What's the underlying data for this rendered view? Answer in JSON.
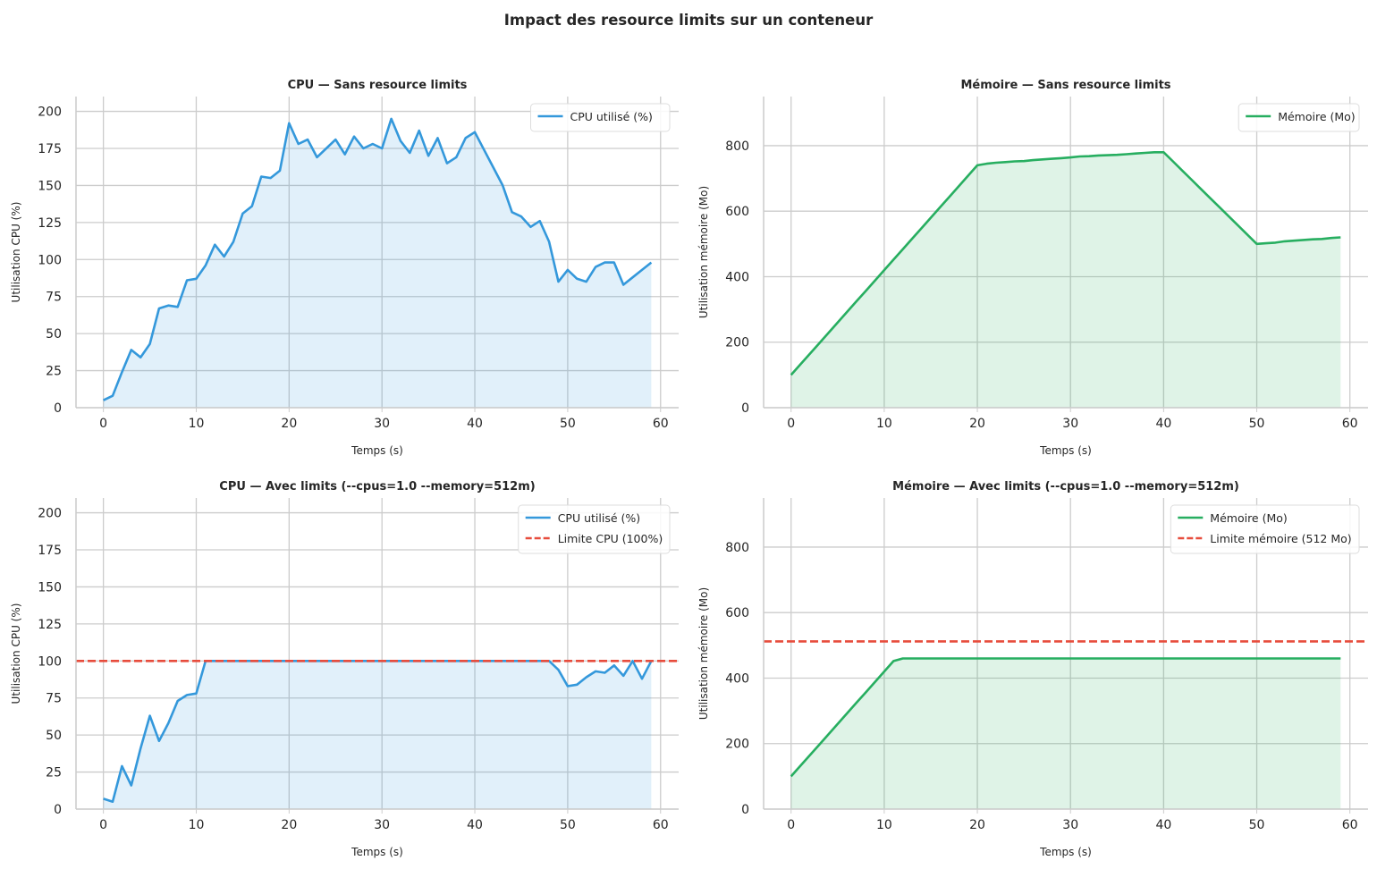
{
  "title": "Impact des resource limits sur un conteneur",
  "colors": {
    "cpu": "#3498db",
    "mem": "#27ae60",
    "limit": "#e74c3c",
    "grid": "#cccccc"
  },
  "chart_data": [
    {
      "type": "area",
      "title": "CPU — Sans resource limits",
      "xlabel": "Temps (s)",
      "ylabel": "Utilisation CPU (%)",
      "xlim": [
        -2.95,
        61.95
      ],
      "ylim": [
        0,
        210
      ],
      "xticks": [
        0,
        10,
        20,
        30,
        40,
        50,
        60
      ],
      "yticks": [
        0,
        25,
        50,
        75,
        100,
        125,
        150,
        175,
        200
      ],
      "legend_position": "top-right",
      "series": [
        {
          "name": "CPU utilisé (%)",
          "color_key": "cpu",
          "style": "solid",
          "fill": true,
          "values": [
            5,
            8,
            24,
            39,
            34,
            43,
            67,
            69,
            68,
            86,
            87,
            96,
            110,
            102,
            112,
            131,
            136,
            156,
            155,
            160,
            192,
            178,
            181,
            169,
            175,
            181,
            171,
            183,
            175,
            178,
            175,
            195,
            180,
            172,
            187,
            170,
            182,
            165,
            169,
            182,
            186,
            174,
            162,
            150,
            132,
            129,
            122,
            126,
            112,
            85,
            93,
            87,
            85,
            95,
            98,
            98,
            83,
            88,
            93,
            98
          ]
        }
      ]
    },
    {
      "type": "area",
      "title": "Mémoire — Sans resource limits",
      "xlabel": "Temps (s)",
      "ylabel": "Utilisation mémoire (Mo)",
      "xlim": [
        -2.95,
        61.95
      ],
      "ylim": [
        0,
        950
      ],
      "xticks": [
        0,
        10,
        20,
        30,
        40,
        50,
        60
      ],
      "yticks": [
        0,
        200,
        400,
        600,
        800
      ],
      "legend_position": "top-right",
      "series": [
        {
          "name": "Mémoire (Mo)",
          "color_key": "mem",
          "style": "solid",
          "fill": true,
          "values": [
            100,
            132,
            164,
            196,
            228,
            260,
            292,
            324,
            356,
            388,
            420,
            452,
            484,
            516,
            548,
            580,
            612,
            644,
            676,
            708,
            740,
            745,
            748,
            750,
            752,
            753,
            756,
            758,
            760,
            762,
            764,
            767,
            768,
            770,
            771,
            772,
            774,
            776,
            778,
            780,
            780,
            752,
            724,
            696,
            668,
            640,
            612,
            584,
            556,
            528,
            500,
            502,
            504,
            508,
            510,
            512,
            514,
            515,
            518,
            520
          ]
        }
      ]
    },
    {
      "type": "area",
      "title": "CPU — Avec limits (--cpus=1.0 --memory=512m)",
      "xlabel": "Temps (s)",
      "ylabel": "Utilisation CPU (%)",
      "xlim": [
        -2.95,
        61.95
      ],
      "ylim": [
        0,
        210
      ],
      "xticks": [
        0,
        10,
        20,
        30,
        40,
        50,
        60
      ],
      "yticks": [
        0,
        25,
        50,
        75,
        100,
        125,
        150,
        175,
        200
      ],
      "legend_position": "top-right",
      "series": [
        {
          "name": "CPU utilisé (%)",
          "color_key": "cpu",
          "style": "solid",
          "fill": true,
          "values": [
            7,
            5,
            29,
            16,
            41,
            63,
            46,
            58,
            73,
            77,
            78,
            100,
            100,
            100,
            100,
            100,
            100,
            100,
            100,
            100,
            100,
            100,
            100,
            100,
            100,
            100,
            100,
            100,
            100,
            100,
            100,
            100,
            100,
            100,
            100,
            100,
            100,
            100,
            100,
            100,
            100,
            100,
            100,
            100,
            100,
            100,
            100,
            100,
            100,
            94,
            83,
            84,
            89,
            93,
            92,
            97,
            90,
            100,
            88,
            100
          ]
        },
        {
          "name": "Limite CPU (100%)",
          "color_key": "limit",
          "style": "dashed",
          "hline": 100
        }
      ]
    },
    {
      "type": "area",
      "title": "Mémoire — Avec limits (--cpus=1.0 --memory=512m)",
      "xlabel": "Temps (s)",
      "ylabel": "Utilisation mémoire (Mo)",
      "xlim": [
        -2.95,
        61.95
      ],
      "ylim": [
        0,
        950
      ],
      "xticks": [
        0,
        10,
        20,
        30,
        40,
        50,
        60
      ],
      "yticks": [
        0,
        200,
        400,
        600,
        800
      ],
      "legend_position": "top-right",
      "series": [
        {
          "name": "Mémoire (Mo)",
          "color_key": "mem",
          "style": "solid",
          "fill": true,
          "values": [
            100,
            132,
            164,
            196,
            228,
            260,
            292,
            324,
            356,
            388,
            420,
            452,
            460,
            460,
            460,
            460,
            460,
            460,
            460,
            460,
            460,
            460,
            460,
            460,
            460,
            460,
            460,
            460,
            460,
            460,
            460,
            460,
            460,
            460,
            460,
            460,
            460,
            460,
            460,
            460,
            460,
            460,
            460,
            460,
            460,
            460,
            460,
            460,
            460,
            460,
            460,
            460,
            460,
            460,
            460,
            460,
            460,
            460,
            460,
            460
          ]
        },
        {
          "name": "Limite mémoire (512 Mo)",
          "color_key": "limit",
          "style": "dashed",
          "hline": 512
        }
      ]
    }
  ]
}
